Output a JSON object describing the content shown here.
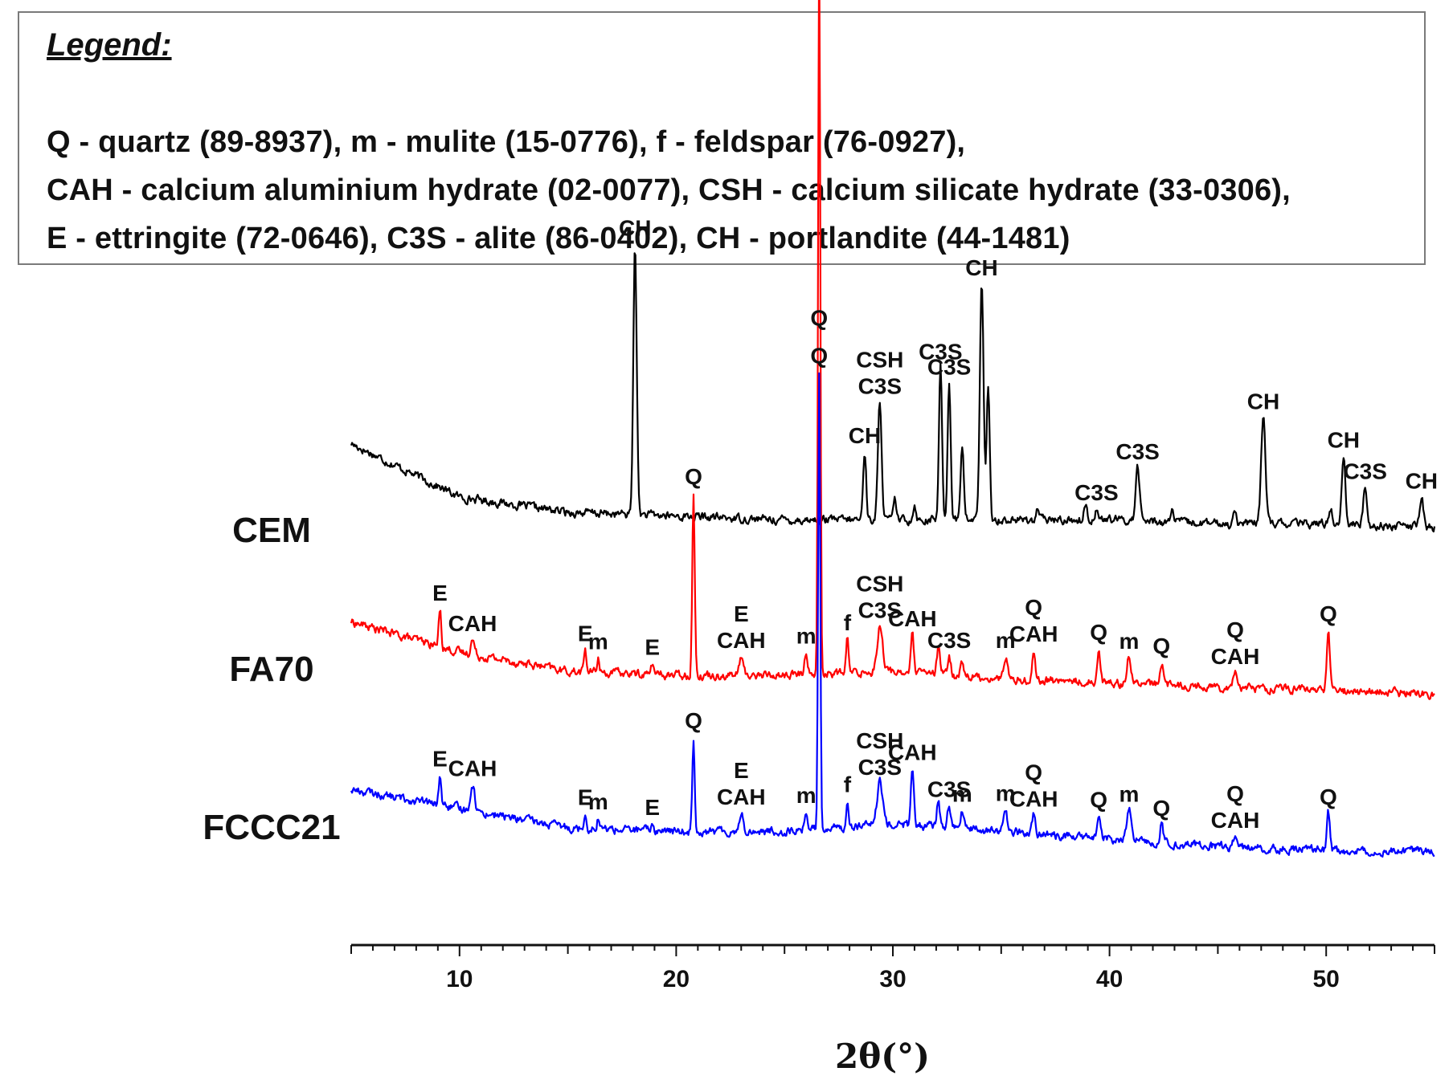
{
  "legend": {
    "title": "Legend:",
    "lines": [
      "Q - quartz (89-8937), m - mulite (15-0776), f - feldspar (76-0927),",
      "CAH - calcium aluminium hydrate (02-0077), CSH - calcium silicate hydrate (33-0306),",
      "E - ettringite (72-0646), C3S - alite (86-0402), CH - portlandite (44-1481)"
    ]
  },
  "chart_data": {
    "type": "line",
    "title": "",
    "xlabel": "2θ(°)",
    "ylabel": "",
    "xlim": [
      5,
      55
    ],
    "ylim": [
      0,
      1
    ],
    "xticks": [
      10,
      20,
      30,
      40,
      50
    ],
    "grid": false,
    "legend": "none",
    "series": [
      {
        "name": "CEM",
        "color": "#000000",
        "baseline": [
          [
            5,
            0.3
          ],
          [
            10,
            0.16
          ],
          [
            15,
            0.12
          ],
          [
            20,
            0.11
          ],
          [
            25,
            0.1
          ],
          [
            30,
            0.1
          ],
          [
            35,
            0.1
          ],
          [
            40,
            0.1
          ],
          [
            45,
            0.09
          ],
          [
            50,
            0.09
          ],
          [
            55,
            0.08
          ]
        ],
        "peaks": [
          {
            "x": 18.1,
            "h": 0.71,
            "w": 0.11,
            "labels": [
              "CH"
            ]
          },
          {
            "x": 28.7,
            "h": 0.18,
            "w": 0.1,
            "labels": [
              "CH"
            ]
          },
          {
            "x": 29.4,
            "h": 0.31,
            "w": 0.12,
            "labels": [
              "CSH",
              "C3S"
            ]
          },
          {
            "x": 30.1,
            "h": 0.05,
            "w": 0.1,
            "labels": []
          },
          {
            "x": 31.0,
            "h": 0.04,
            "w": 0.1,
            "labels": []
          },
          {
            "x": 32.2,
            "h": 0.4,
            "w": 0.1,
            "labels": [
              "C3S"
            ]
          },
          {
            "x": 32.6,
            "h": 0.36,
            "w": 0.1,
            "labels": [
              "C3S"
            ]
          },
          {
            "x": 33.2,
            "h": 0.2,
            "w": 0.1,
            "labels": []
          },
          {
            "x": 34.1,
            "h": 0.62,
            "w": 0.12,
            "labels": [
              "CH"
            ]
          },
          {
            "x": 34.4,
            "h": 0.34,
            "w": 0.1,
            "labels": []
          },
          {
            "x": 36.7,
            "h": 0.03,
            "w": 0.1,
            "labels": []
          },
          {
            "x": 38.9,
            "h": 0.04,
            "w": 0.1,
            "labels": []
          },
          {
            "x": 39.4,
            "h": 0.03,
            "w": 0.1,
            "labels": [
              "C3S"
            ]
          },
          {
            "x": 41.3,
            "h": 0.14,
            "w": 0.13,
            "labels": [
              "C3S"
            ]
          },
          {
            "x": 42.9,
            "h": 0.03,
            "w": 0.1,
            "labels": []
          },
          {
            "x": 45.8,
            "h": 0.04,
            "w": 0.1,
            "labels": []
          },
          {
            "x": 47.1,
            "h": 0.28,
            "w": 0.14,
            "labels": [
              "CH"
            ]
          },
          {
            "x": 50.2,
            "h": 0.04,
            "w": 0.12,
            "labels": []
          },
          {
            "x": 50.8,
            "h": 0.18,
            "w": 0.12,
            "labels": [
              "CH"
            ]
          },
          {
            "x": 51.8,
            "h": 0.1,
            "w": 0.12,
            "labels": [
              "C3S"
            ]
          },
          {
            "x": 54.4,
            "h": 0.08,
            "w": 0.12,
            "labels": [
              "CH"
            ]
          }
        ]
      },
      {
        "name": "FA70",
        "color": "#ff0000",
        "baseline": [
          [
            5,
            0.25
          ],
          [
            10,
            0.17
          ],
          [
            15,
            0.12
          ],
          [
            20,
            0.11
          ],
          [
            25,
            0.11
          ],
          [
            30,
            0.12
          ],
          [
            35,
            0.1
          ],
          [
            40,
            0.09
          ],
          [
            45,
            0.08
          ],
          [
            50,
            0.07
          ],
          [
            55,
            0.06
          ]
        ],
        "peaks": [
          {
            "x": 9.1,
            "h": 0.1,
            "w": 0.08,
            "labels": [
              "E"
            ]
          },
          {
            "x": 10.6,
            "h": 0.04,
            "w": 0.12,
            "labels": [
              "CAH"
            ]
          },
          {
            "x": 15.8,
            "h": 0.06,
            "w": 0.08,
            "labels": [
              "E"
            ]
          },
          {
            "x": 16.4,
            "h": 0.04,
            "w": 0.08,
            "labels": [
              "m"
            ]
          },
          {
            "x": 18.9,
            "h": 0.03,
            "w": 0.08,
            "labels": [
              "E"
            ]
          },
          {
            "x": 20.8,
            "h": 0.48,
            "w": 0.08,
            "labels": [
              "Q"
            ]
          },
          {
            "x": 23.0,
            "h": 0.05,
            "w": 0.12,
            "labels": [
              "E",
              "CAH"
            ]
          },
          {
            "x": 26.0,
            "h": 0.06,
            "w": 0.1,
            "labels": [
              "m"
            ]
          },
          {
            "x": 26.6,
            "h": 1.95,
            "w": 0.07,
            "labels": [
              "Q"
            ]
          },
          {
            "x": 27.9,
            "h": 0.09,
            "w": 0.08,
            "labels": [
              "f"
            ]
          },
          {
            "x": 29.4,
            "h": 0.12,
            "w": 0.18,
            "labels": [
              "CSH",
              "C3S"
            ]
          },
          {
            "x": 30.9,
            "h": 0.1,
            "w": 0.09,
            "labels": [
              "CAH"
            ]
          },
          {
            "x": 32.1,
            "h": 0.07,
            "w": 0.1,
            "labels": []
          },
          {
            "x": 32.6,
            "h": 0.05,
            "w": 0.1,
            "labels": [
              "C3S"
            ]
          },
          {
            "x": 33.2,
            "h": 0.04,
            "w": 0.1,
            "labels": []
          },
          {
            "x": 35.2,
            "h": 0.06,
            "w": 0.12,
            "labels": [
              "m"
            ]
          },
          {
            "x": 36.5,
            "h": 0.08,
            "w": 0.09,
            "labels": [
              "Q",
              "CAH"
            ]
          },
          {
            "x": 39.5,
            "h": 0.09,
            "w": 0.1,
            "labels": [
              "Q"
            ]
          },
          {
            "x": 40.9,
            "h": 0.07,
            "w": 0.14,
            "labels": [
              "m"
            ]
          },
          {
            "x": 42.4,
            "h": 0.06,
            "w": 0.1,
            "labels": [
              "Q"
            ]
          },
          {
            "x": 45.8,
            "h": 0.04,
            "w": 0.14,
            "labels": [
              "Q",
              "CAH"
            ]
          },
          {
            "x": 50.1,
            "h": 0.16,
            "w": 0.1,
            "labels": [
              "Q"
            ]
          }
        ]
      },
      {
        "name": "FCCC21",
        "color": "#0000ff",
        "baseline": [
          [
            5,
            0.21
          ],
          [
            10,
            0.16
          ],
          [
            15,
            0.11
          ],
          [
            20,
            0.1
          ],
          [
            25,
            0.1
          ],
          [
            30,
            0.12
          ],
          [
            35,
            0.1
          ],
          [
            40,
            0.08
          ],
          [
            45,
            0.06
          ],
          [
            50,
            0.05
          ],
          [
            55,
            0.05
          ]
        ],
        "peaks": [
          {
            "x": 9.1,
            "h": 0.08,
            "w": 0.08,
            "labels": [
              "E"
            ]
          },
          {
            "x": 10.6,
            "h": 0.07,
            "w": 0.14,
            "labels": [
              "CAH"
            ]
          },
          {
            "x": 15.8,
            "h": 0.04,
            "w": 0.08,
            "labels": [
              "E"
            ]
          },
          {
            "x": 16.4,
            "h": 0.03,
            "w": 0.08,
            "labels": [
              "m"
            ]
          },
          {
            "x": 18.9,
            "h": 0.02,
            "w": 0.08,
            "labels": [
              "E"
            ]
          },
          {
            "x": 20.8,
            "h": 0.25,
            "w": 0.08,
            "labels": [
              "Q"
            ]
          },
          {
            "x": 23.0,
            "h": 0.05,
            "w": 0.12,
            "labels": [
              "E",
              "CAH"
            ]
          },
          {
            "x": 26.0,
            "h": 0.05,
            "w": 0.1,
            "labels": [
              "m"
            ]
          },
          {
            "x": 26.6,
            "h": 1.2,
            "w": 0.07,
            "labels": [
              "Q"
            ]
          },
          {
            "x": 27.9,
            "h": 0.07,
            "w": 0.08,
            "labels": [
              "f"
            ]
          },
          {
            "x": 29.4,
            "h": 0.11,
            "w": 0.18,
            "labels": [
              "CSH",
              "C3S"
            ]
          },
          {
            "x": 30.9,
            "h": 0.15,
            "w": 0.09,
            "labels": [
              "CAH"
            ]
          },
          {
            "x": 32.1,
            "h": 0.07,
            "w": 0.1,
            "labels": []
          },
          {
            "x": 32.6,
            "h": 0.06,
            "w": 0.1,
            "labels": [
              "C3S"
            ]
          },
          {
            "x": 33.2,
            "h": 0.05,
            "w": 0.1,
            "labels": [
              "m"
            ]
          },
          {
            "x": 35.2,
            "h": 0.06,
            "w": 0.12,
            "labels": [
              "m"
            ]
          },
          {
            "x": 36.5,
            "h": 0.05,
            "w": 0.09,
            "labels": [
              "Q",
              "CAH"
            ]
          },
          {
            "x": 39.5,
            "h": 0.06,
            "w": 0.1,
            "labels": [
              "Q"
            ]
          },
          {
            "x": 40.9,
            "h": 0.08,
            "w": 0.14,
            "labels": [
              "m"
            ]
          },
          {
            "x": 42.4,
            "h": 0.05,
            "w": 0.1,
            "labels": [
              "Q"
            ]
          },
          {
            "x": 45.8,
            "h": 0.03,
            "w": 0.14,
            "labels": [
              "Q",
              "CAH"
            ]
          },
          {
            "x": 50.1,
            "h": 0.1,
            "w": 0.1,
            "labels": [
              "Q"
            ]
          }
        ]
      }
    ]
  }
}
